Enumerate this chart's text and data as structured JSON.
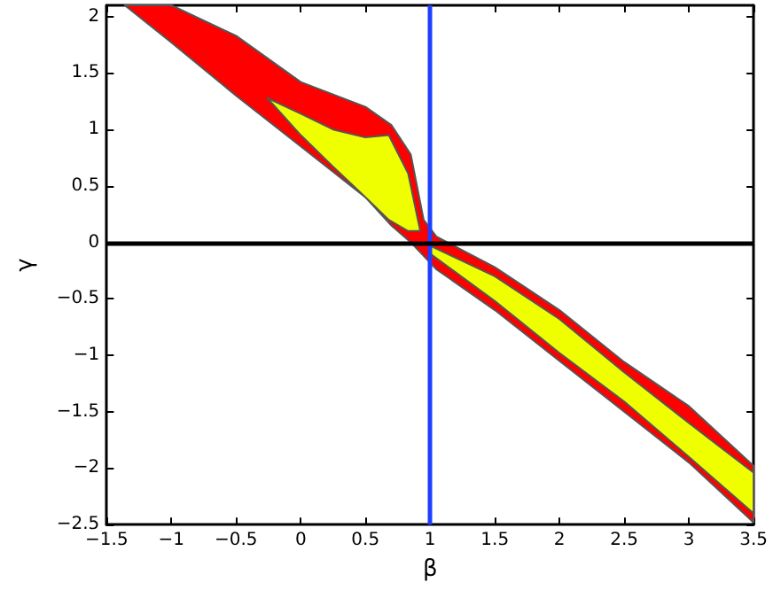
{
  "chart_data": {
    "type": "area",
    "xlabel": "β",
    "ylabel": "γ",
    "xlim": [
      -1.5,
      3.5
    ],
    "ylim": [
      -2.5,
      2.1
    ],
    "xticks": [
      -1.5,
      -1,
      -0.5,
      0,
      0.5,
      1,
      1.5,
      2,
      2.5,
      3,
      3.5
    ],
    "yticks": [
      -2.5,
      -2,
      -1.5,
      -1,
      -0.5,
      0,
      0.5,
      1,
      1.5,
      2
    ],
    "grid": false,
    "series": [
      {
        "color": "#ff0000",
        "x": [
          -1.36,
          -1,
          -0.5,
          0,
          0.5,
          0.7,
          0.85,
          0.95,
          1.05,
          1.5,
          2,
          2.5,
          3,
          3.5
        ],
        "values": [
          null,
          null,
          null,
          null,
          null,
          null,
          null,
          null,
          null,
          null,
          null,
          null,
          null,
          null
        ],
        "upper": [
          2.1,
          2.1,
          1.83,
          1.42,
          1.2,
          1.04,
          0.78,
          0.2,
          0.05,
          -0.22,
          -0.6,
          -1.06,
          -1.45,
          -1.98
        ],
        "lower": [
          2.1,
          1.77,
          1.3,
          0.85,
          0.4,
          0.15,
          0.0,
          -0.12,
          -0.24,
          -0.6,
          -1.05,
          -1.5,
          -1.95,
          -2.48
        ]
      },
      {
        "color": "#f0ff00",
        "x": [
          -0.26,
          0,
          0.25,
          0.5,
          0.68,
          0.83,
          0.92
        ],
        "values": [
          null,
          null,
          null,
          null,
          null,
          null,
          null
        ],
        "upper": [
          1.28,
          1.14,
          1.0,
          0.93,
          0.95,
          0.61,
          0.12
        ],
        "lower": [
          1.28,
          0.95,
          0.67,
          0.4,
          0.2,
          0.1,
          0.1
        ]
      },
      {
        "color": "#f0ff00",
        "x": [
          1.0,
          1.5,
          2,
          2.5,
          3,
          3.5
        ],
        "values": [
          null,
          null,
          null,
          null,
          null,
          null
        ],
        "upper": [
          -0.03,
          -0.3,
          -0.68,
          -1.15,
          -1.6,
          -2.04
        ],
        "lower": [
          -0.1,
          -0.52,
          -0.98,
          -1.41,
          -1.9,
          -2.4
        ]
      }
    ],
    "ref_lines": [
      {
        "axis": "x",
        "value": 1,
        "color": "#1f3fff"
      },
      {
        "axis": "y",
        "value": 0,
        "color": "#000000"
      }
    ]
  }
}
